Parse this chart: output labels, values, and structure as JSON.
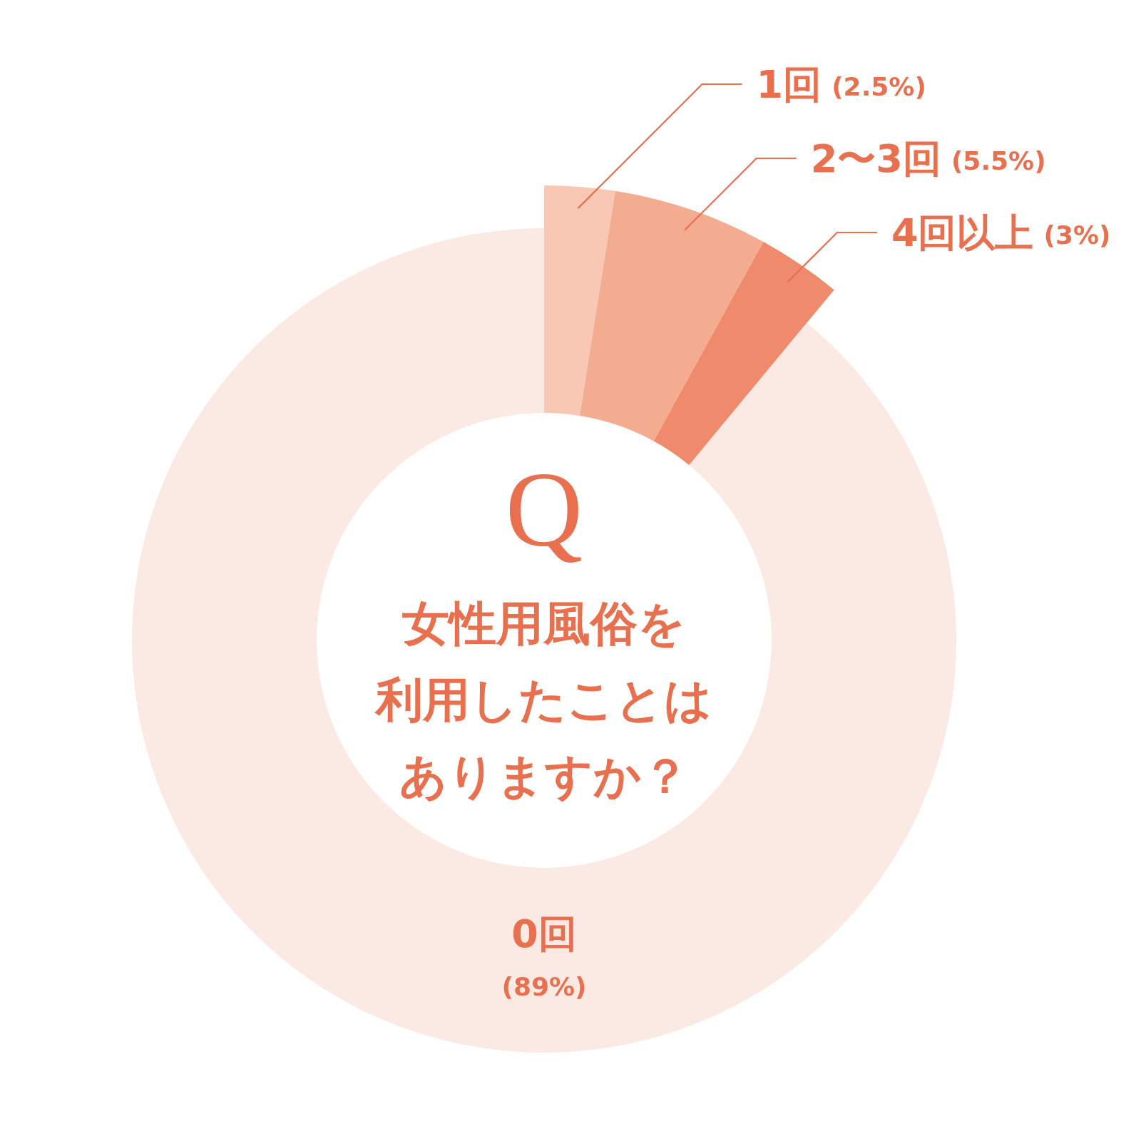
{
  "chart_data": {
    "type": "donut",
    "title": "Q",
    "subtitle": "女性用風俗を利用したことはありますか？",
    "categories": [
      "1回",
      "2〜3回",
      "4回以上",
      "0回"
    ],
    "values": [
      2.5,
      5.5,
      3,
      89
    ],
    "value_labels": [
      "(2.5%)",
      "(5.5%)",
      "(3%)",
      "(89%)"
    ],
    "colors": [
      "#f8c8b4",
      "#f4ac90",
      "#ef8b6c",
      "#fbeae3"
    ]
  }
}
